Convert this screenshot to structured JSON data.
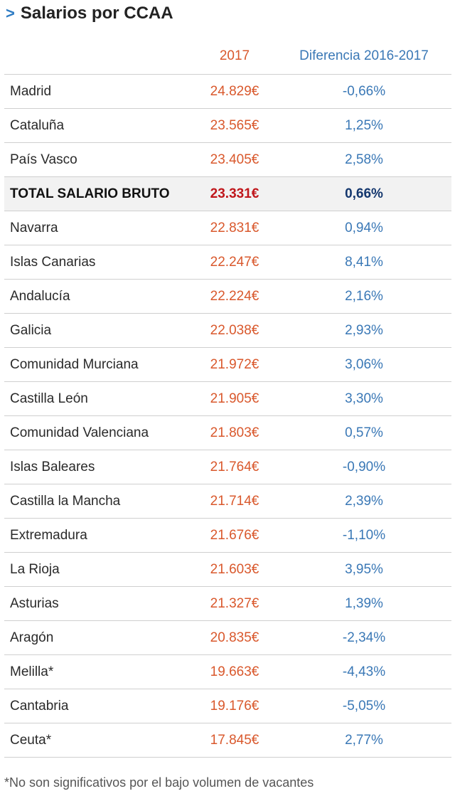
{
  "title": "Salarios por CCAA",
  "title_marker": ">",
  "colors": {
    "accent_blue": "#2e7cc4",
    "value_orange": "#d9582c",
    "total_value_red": "#c0171c",
    "pct_blue": "#3a78b6",
    "total_pct_blue": "#14376e"
  },
  "columns": {
    "year": "2017",
    "difference": "Diferencia 2016-2017"
  },
  "rows": [
    {
      "name": "Madrid",
      "value": "24.829€",
      "diff": "-0,66%"
    },
    {
      "name": "Cataluña",
      "value": "23.565€",
      "diff": "1,25%"
    },
    {
      "name": "País Vasco",
      "value": "23.405€",
      "diff": "2,58%"
    },
    {
      "name": "TOTAL SALARIO BRUTO",
      "value": "23.331€",
      "diff": "0,66%",
      "highlight": true
    },
    {
      "name": "Navarra",
      "value": "22.831€",
      "diff": "0,94%"
    },
    {
      "name": "Islas Canarias",
      "value": "22.247€",
      "diff": "8,41%"
    },
    {
      "name": "Andalucía",
      "value": "22.224€",
      "diff": "2,16%"
    },
    {
      "name": "Galicia",
      "value": "22.038€",
      "diff": "2,93%"
    },
    {
      "name": "Comunidad Murciana",
      "value": "21.972€",
      "diff": "3,06%"
    },
    {
      "name": "Castilla León",
      "value": "21.905€",
      "diff": "3,30%"
    },
    {
      "name": "Comunidad Valenciana",
      "value": "21.803€",
      "diff": "0,57%"
    },
    {
      "name": "Islas Baleares",
      "value": "21.764€",
      "diff": "-0,90%"
    },
    {
      "name": "Castilla la Mancha",
      "value": "21.714€",
      "diff": "2,39%"
    },
    {
      "name": "Extremadura",
      "value": "21.676€",
      "diff": "-1,10%"
    },
    {
      "name": "La Rioja",
      "value": "21.603€",
      "diff": "3,95%"
    },
    {
      "name": "Asturias",
      "value": "21.327€",
      "diff": "1,39%"
    },
    {
      "name": "Aragón",
      "value": "20.835€",
      "diff": "-2,34%"
    },
    {
      "name": "Melilla*",
      "value": "19.663€",
      "diff": "-4,43%"
    },
    {
      "name": "Cantabria",
      "value": "19.176€",
      "diff": "-5,05%"
    },
    {
      "name": "Ceuta*",
      "value": "17.845€",
      "diff": "2,77%"
    }
  ],
  "footnote": "*No son significativos por el bajo volumen de vacantes"
}
